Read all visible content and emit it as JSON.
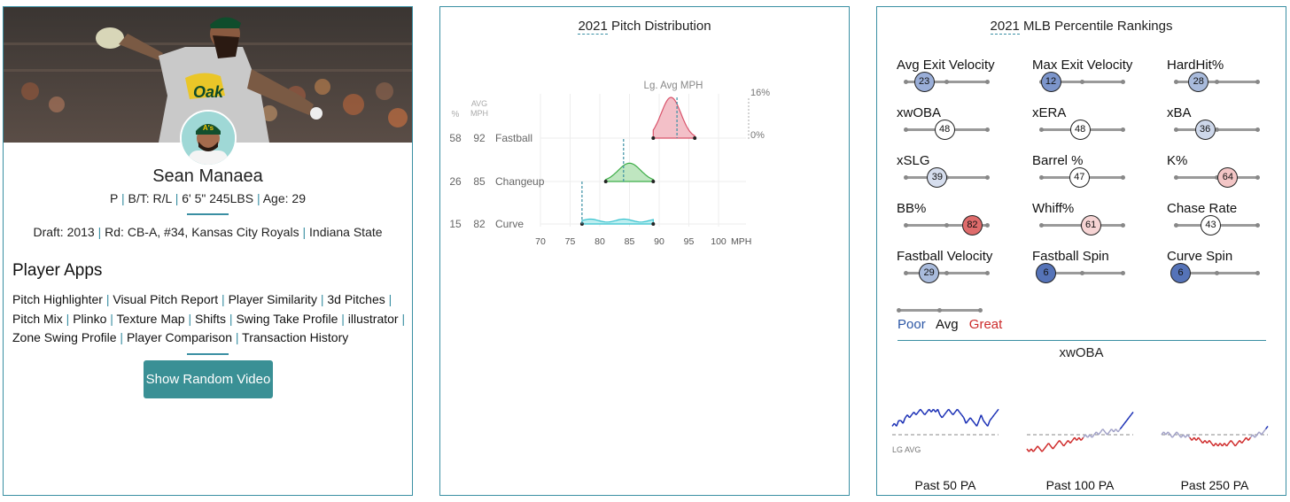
{
  "player": {
    "name": "Sean Manaea",
    "bio_pos": "P",
    "bio_bt": "B/T: R/L",
    "bio_ht_wt": "6' 5\" 245LBS",
    "bio_age": "Age: 29",
    "draft_prefix": "Draft: ",
    "draft_year": "2013",
    "draft_round": "Rd: CB-A, #34,",
    "draft_team": "Kansas City Royals",
    "draft_school": "Indiana State",
    "team_cap_initials": "A's"
  },
  "apps": {
    "title": "Player Apps",
    "links": [
      "Pitch Highlighter",
      "Visual Pitch Report",
      "Player Similarity",
      "3d Pitches",
      "Pitch Mix",
      "Plinko",
      "Texture Map",
      "Shifts",
      "Swing Take Profile",
      "illustrator",
      "Zone Swing Profile",
      "Player Comparison",
      "Transaction History"
    ],
    "button": "Show Random Video"
  },
  "pitch_dist": {
    "title_year": "2021",
    "title_rest": " Pitch Distribution",
    "lg_avg_label": "Lg. Avg MPH",
    "col_pct": "%",
    "col_avg": "AVG",
    "col_mph": "MPH",
    "max_label": "16%",
    "zero_label": "0%",
    "axis_unit": "MPH",
    "ticks": [
      "70",
      "75",
      "80",
      "85",
      "90",
      "95",
      "100"
    ],
    "pitches": [
      {
        "pct": "58",
        "mph": "92",
        "name": "Fastball",
        "color": "#d9536b",
        "fill": "#f3c0c8",
        "lg_avg": 93,
        "min": 89,
        "max": 96,
        "peak": 1.0
      },
      {
        "pct": "26",
        "mph": "85",
        "name": "Changeup",
        "color": "#3fae49",
        "fill": "#bfe6c0",
        "lg_avg": 84,
        "min": 81,
        "max": 89,
        "peak": 0.45
      },
      {
        "pct": "15",
        "mph": "82",
        "name": "Curve",
        "color": "#39c3cf",
        "fill": "#bdeef0",
        "lg_avg": 77,
        "min": 77,
        "max": 89,
        "peak": 0.12
      }
    ]
  },
  "percentile": {
    "title_year": "2021",
    "title_rest": " MLB Percentile Rankings",
    "metrics": [
      {
        "label": "Avg Exit Velocity",
        "value": "23",
        "color": "#9aaed8"
      },
      {
        "label": "Max Exit Velocity",
        "value": "12",
        "color": "#7c95cb"
      },
      {
        "label": "HardHit%",
        "value": "28",
        "color": "#a9bbdc"
      },
      {
        "label": "xwOBA",
        "value": "48",
        "color": "#ffffff"
      },
      {
        "label": "xERA",
        "value": "48",
        "color": "#ffffff"
      },
      {
        "label": "xBA",
        "value": "36",
        "color": "#cdd7ea"
      },
      {
        "label": "xSLG",
        "value": "39",
        "color": "#d6deee"
      },
      {
        "label": "Barrel %",
        "value": "47",
        "color": "#ffffff"
      },
      {
        "label": "K%",
        "value": "64",
        "color": "#f3c6c6"
      },
      {
        "label": "BB%",
        "value": "82",
        "color": "#de6b6b"
      },
      {
        "label": "Whiff%",
        "value": "61",
        "color": "#f6d4d4"
      },
      {
        "label": "Chase Rate",
        "value": "43",
        "color": "#ffffff"
      },
      {
        "label": "Fastball Velocity",
        "value": "29",
        "color": "#a9bbdc"
      },
      {
        "label": "Fastball Spin",
        "value": "6",
        "color": "#5573b8"
      },
      {
        "label": "Curve Spin",
        "value": "6",
        "color": "#5573b8"
      }
    ],
    "legend_poor": "Poor",
    "legend_avg": "Avg",
    "legend_great": "Great",
    "color_poor": "#2b56a5",
    "color_great": "#cc2b2b"
  },
  "xwoba": {
    "title": "xwOBA",
    "lg_avg_label": "LG AVG",
    "windows": [
      {
        "label": "Past 50 PA",
        "line_color": "#1a2fb5",
        "values": [
          0.36,
          0.37,
          0.36,
          0.38,
          0.38,
          0.37,
          0.39,
          0.4,
          0.39,
          0.4,
          0.41,
          0.4,
          0.41,
          0.42,
          0.41,
          0.4,
          0.41,
          0.42,
          0.41,
          0.42,
          0.41,
          0.42,
          0.4,
          0.39,
          0.4,
          0.41,
          0.42,
          0.41,
          0.4,
          0.41,
          0.42,
          0.41,
          0.4,
          0.39,
          0.37,
          0.38,
          0.39,
          0.38,
          0.37,
          0.36,
          0.38,
          0.4,
          0.38,
          0.37,
          0.36,
          0.38,
          0.39,
          0.4,
          0.41,
          0.42
        ]
      },
      {
        "label": "Past 100 PA",
        "line_color": "#cf2a2a",
        "values": [
          0.28,
          0.27,
          0.28,
          0.27,
          0.28,
          0.29,
          0.28,
          0.27,
          0.28,
          0.29,
          0.3,
          0.29,
          0.28,
          0.29,
          0.3,
          0.31,
          0.3,
          0.29,
          0.3,
          0.31,
          0.3,
          0.31,
          0.32,
          0.31,
          0.32,
          0.31,
          0.32,
          0.33,
          0.32,
          0.33,
          0.32,
          0.33,
          0.34,
          0.33,
          0.34,
          0.35,
          0.34,
          0.33,
          0.34,
          0.35,
          0.34,
          0.35,
          0.34,
          0.35,
          0.36,
          0.37,
          0.38,
          0.39,
          0.4,
          0.41
        ]
      },
      {
        "label": "Past 250 PA",
        "line_color": "#cf2a2a",
        "values": [
          0.33,
          0.34,
          0.33,
          0.34,
          0.33,
          0.32,
          0.33,
          0.34,
          0.33,
          0.32,
          0.33,
          0.32,
          0.33,
          0.32,
          0.31,
          0.32,
          0.31,
          0.32,
          0.31,
          0.3,
          0.31,
          0.3,
          0.31,
          0.3,
          0.29,
          0.3,
          0.29,
          0.3,
          0.29,
          0.3,
          0.29,
          0.3,
          0.31,
          0.3,
          0.29,
          0.3,
          0.31,
          0.3,
          0.31,
          0.32,
          0.31,
          0.32,
          0.33,
          0.32,
          0.33,
          0.34,
          0.33,
          0.34,
          0.35,
          0.36
        ]
      }
    ],
    "lg_avg": 0.33,
    "color_above": "#1a2fb5",
    "color_below": "#cf2a2a",
    "color_near": "#a3a3c8"
  }
}
